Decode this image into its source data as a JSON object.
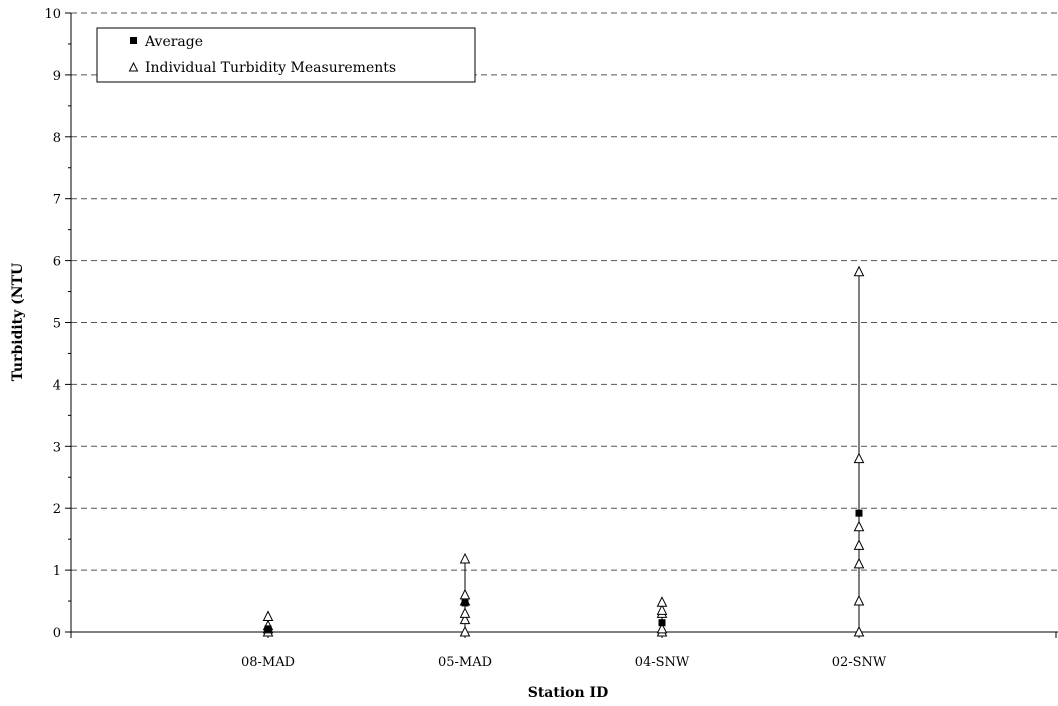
{
  "chart_data": {
    "type": "scatter",
    "title": "",
    "xlabel": "Station ID",
    "ylabel": "Turbidity (NTU",
    "ylim": [
      0,
      10
    ],
    "y_ticks": [
      "0",
      "1",
      "2",
      "3",
      "4",
      "5",
      "6",
      "7",
      "8",
      "9",
      "10"
    ],
    "categories": [
      "08-MAD",
      "05-MAD",
      "04-SNW",
      "02-SNW"
    ],
    "grid": "horizontal dashed at 1-unit intervals",
    "legend_position": "top-left",
    "series": [
      {
        "name": "Average",
        "marker": "filled-square",
        "values": [
          0.05,
          0.47,
          0.15,
          1.92
        ]
      },
      {
        "name": "Individual Turbidity Measurements",
        "marker": "open-triangle",
        "points": [
          [
            0.0,
            0.05,
            0.1,
            0.25
          ],
          [
            0.0,
            0.2,
            0.3,
            0.5,
            0.6,
            1.18
          ],
          [
            0.0,
            0.05,
            0.3,
            0.35,
            0.48
          ],
          [
            0.0,
            0.5,
            1.1,
            1.4,
            1.7,
            2.8,
            5.82
          ]
        ]
      }
    ],
    "range_lines": [
      {
        "category": "08-MAD",
        "min": 0.0,
        "max": 0.25
      },
      {
        "category": "05-MAD",
        "min": 0.0,
        "max": 1.18
      },
      {
        "category": "04-SNW",
        "min": 0.0,
        "max": 0.48
      },
      {
        "category": "02-SNW",
        "min": 0.0,
        "max": 5.82
      }
    ],
    "colors": {
      "axis": "#000000",
      "grid": "#555555",
      "marker_fill_avg": "#000000",
      "marker_fill_ind": "#ffffff"
    }
  }
}
